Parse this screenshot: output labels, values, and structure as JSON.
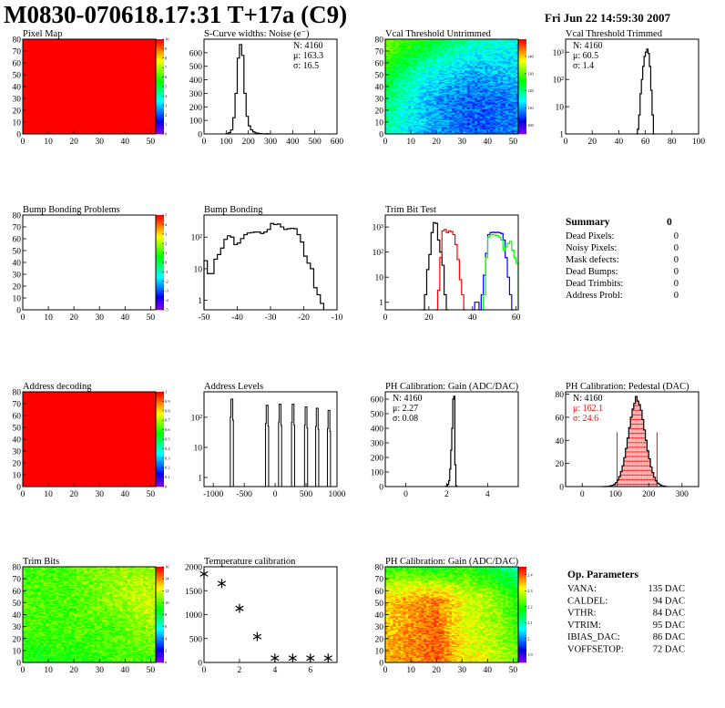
{
  "header": {
    "title": "M0830-070618.17:31 T+17a (C9)",
    "date": "Fri Jun 22 14:59:30 2007"
  },
  "chart_data": [
    {
      "id": "pixel-map",
      "type": "heatmap",
      "title": "Pixel Map",
      "xlim": [
        0,
        52
      ],
      "ylim": [
        0,
        80
      ],
      "xticks": [
        0,
        10,
        20,
        30,
        40,
        50
      ],
      "yticks": [
        0,
        10,
        20,
        30,
        40,
        50,
        60,
        70,
        80
      ],
      "zlim": [
        0,
        10
      ],
      "z_ticks": [
        0,
        1,
        2,
        3,
        4,
        5,
        6,
        7,
        8,
        9,
        10
      ],
      "uniform_value": 10
    },
    {
      "id": "scurve-noise",
      "type": "bar",
      "title": "S-Curve widths: Noise (e⁻)",
      "xlim": [
        0,
        600
      ],
      "ylim": [
        0,
        700
      ],
      "xticks": [
        0,
        100,
        200,
        300,
        400,
        500,
        600
      ],
      "yticks": [
        0,
        100,
        200,
        300,
        400,
        500,
        600
      ],
      "series": [
        {
          "x_start": 100,
          "bin_width": 10,
          "values": [
            3,
            10,
            30,
            120,
            300,
            560,
            660,
            580,
            300,
            130,
            60,
            30,
            15,
            8,
            5,
            3,
            1,
            0,
            2,
            0
          ],
          "color": "#000000"
        }
      ],
      "stats": {
        "position": "top-right",
        "lines": [
          "N: 4160",
          "μ: 163.3",
          "σ: 16.5"
        ]
      }
    },
    {
      "id": "vcal-untrimmed",
      "type": "heatmap",
      "title": "Vcal Threshold Untrimmed",
      "xlim": [
        0,
        52
      ],
      "ylim": [
        0,
        80
      ],
      "xticks": [
        0,
        10,
        20,
        30,
        40,
        50
      ],
      "yticks": [
        0,
        10,
        20,
        30,
        40,
        50,
        60,
        70,
        80
      ],
      "zlim": [
        95,
        150
      ],
      "z_ticks": [
        100,
        110,
        120,
        130,
        140
      ],
      "coarse_grid_top_to_bottom": [
        [
          132,
          125,
          118,
          115
        ],
        [
          125,
          115,
          110,
          112
        ],
        [
          120,
          110,
          106,
          108
        ],
        [
          118,
          110,
          106,
          108
        ]
      ]
    },
    {
      "id": "vcal-trimmed",
      "type": "bar",
      "title": "Vcal Threshold Trimmed",
      "xlim": [
        0,
        100
      ],
      "ylim": [
        1,
        3000
      ],
      "log_y": true,
      "xticks": [
        0,
        20,
        40,
        60,
        80,
        100
      ],
      "yticks": [
        1,
        10,
        100,
        1000
      ],
      "ytick_labels": [
        "1",
        "10",
        "10²",
        "10³"
      ],
      "series": [
        {
          "x_start": 53,
          "bin_width": 1,
          "values": [
            0,
            1.5,
            5,
            30,
            100,
            300,
            700,
            1000,
            1300,
            900,
            300,
            40,
            5,
            1
          ],
          "color": "#000000"
        }
      ],
      "stats": {
        "position": "top-left",
        "lines": [
          "N: 4160",
          "μ: 60.5",
          "σ:  1.4"
        ]
      }
    },
    {
      "id": "bump-bonding-problems",
      "type": "heatmap",
      "title": "Bump Bonding Problems",
      "xlim": [
        0,
        52
      ],
      "ylim": [
        0,
        80
      ],
      "xticks": [
        0,
        10,
        20,
        30,
        40,
        50
      ],
      "yticks": [
        0,
        10,
        20,
        30,
        40,
        50,
        60,
        70,
        80
      ],
      "zlim": [
        -5,
        5
      ],
      "z_ticks": [
        -5,
        -4,
        -3,
        -2,
        -1,
        0,
        1,
        2,
        3,
        4,
        5
      ],
      "empty": true
    },
    {
      "id": "bump-bonding",
      "type": "bar",
      "title": "Bump Bonding",
      "xlim": [
        -50,
        -10
      ],
      "ylim": [
        0.5,
        500
      ],
      "log_y": true,
      "xticks": [
        -50,
        -40,
        -30,
        -20,
        -10
      ],
      "yticks": [
        1,
        10,
        100
      ],
      "ytick_labels": [
        "1",
        "10",
        "10²"
      ],
      "series": [
        {
          "x_start": -50,
          "bin_width": 1,
          "values": [
            18,
            7,
            7,
            20,
            28,
            45,
            85,
            110,
            100,
            58,
            65,
            90,
            120,
            135,
            140,
            145,
            145,
            130,
            145,
            175,
            270,
            250,
            260,
            210,
            175,
            185,
            190,
            185,
            120,
            70,
            25,
            15,
            10,
            2.5,
            1.5,
            0.8
          ],
          "color": "#000000"
        }
      ]
    },
    {
      "id": "trim-bit-test",
      "type": "bar",
      "title": "Trim Bit Test",
      "xlim": [
        0,
        61
      ],
      "ylim": [
        0.5,
        3000
      ],
      "log_y": true,
      "xticks": [
        0,
        20,
        40,
        60
      ],
      "yticks": [
        1,
        10,
        100,
        1000
      ],
      "ytick_labels": [
        "1",
        "10",
        "10²",
        "10³"
      ],
      "series": [
        {
          "x_start": 17,
          "bin_width": 1,
          "values": [
            0.5,
            2,
            20,
            80,
            600,
            1500,
            1400,
            300,
            100,
            30,
            2,
            0.5
          ],
          "color": "#000000"
        },
        {
          "x_start": 23,
          "bin_width": 1,
          "values": [
            0.5,
            3,
            60,
            700,
            800,
            600,
            700,
            650,
            500,
            200,
            50,
            8,
            2,
            0.5
          ],
          "color": "#ff0000"
        },
        {
          "x_start": 40,
          "bin_width": 1,
          "values": [
            0.5,
            1,
            1,
            0.5,
            2,
            12,
            90,
            500,
            600,
            620,
            600,
            620,
            600,
            550,
            300,
            60,
            10,
            2,
            0.5
          ],
          "color": "#0000ff"
        },
        {
          "x_start": 44,
          "bin_width": 1,
          "values": [
            0.5,
            2,
            60,
            400,
            480,
            500,
            480,
            460,
            400,
            300,
            120,
            160,
            220,
            270,
            120,
            60,
            35
          ],
          "color": "#00ff00"
        }
      ]
    },
    {
      "id": "address-decoding",
      "type": "heatmap",
      "title": "Address decoding",
      "xlim": [
        0,
        52
      ],
      "ylim": [
        0,
        80
      ],
      "xticks": [
        0,
        10,
        20,
        30,
        40,
        50
      ],
      "yticks": [
        0,
        10,
        20,
        30,
        40,
        50,
        60,
        70,
        80
      ],
      "zlim": [
        0,
        1
      ],
      "z_ticks": [
        0,
        0.1,
        0.2,
        0.3,
        0.4,
        0.5,
        0.6,
        0.7,
        0.8,
        0.9,
        1
      ],
      "uniform_value": 1
    },
    {
      "id": "address-levels",
      "type": "bar",
      "title": "Address Levels",
      "xlim": [
        -1150,
        1000
      ],
      "ylim": [
        0.5,
        700
      ],
      "log_y": true,
      "xticks": [
        -1000,
        -500,
        0,
        500,
        1000
      ],
      "yticks": [
        1,
        10,
        100
      ],
      "ytick_labels": [
        "1",
        "10",
        "10²"
      ],
      "peaks": [
        {
          "x": -700,
          "height": 400
        },
        {
          "x": -130,
          "height": 250
        },
        {
          "x": 80,
          "height": 270
        },
        {
          "x": 290,
          "height": 270
        },
        {
          "x": 500,
          "height": 220
        },
        {
          "x": 680,
          "height": 200
        },
        {
          "x": 870,
          "height": 170
        }
      ]
    },
    {
      "id": "ph-gain",
      "type": "bar",
      "title": "PH Calibration: Gain (ADC/DAC)",
      "xlim": [
        -1,
        5.5
      ],
      "ylim": [
        0,
        650
      ],
      "xticks": [
        0,
        2,
        4
      ],
      "yticks": [
        0,
        100,
        200,
        300,
        400,
        500,
        600
      ],
      "series": [
        {
          "x_start": 1.95,
          "bin_width": 0.05,
          "values": [
            2,
            5,
            15,
            40,
            120,
            250,
            400,
            600,
            620,
            150,
            5
          ],
          "color": "#000000"
        }
      ],
      "stats": {
        "position": "top-left",
        "lines": [
          "N: 4160",
          "μ: 2.27",
          "σ: 0.08"
        ]
      }
    },
    {
      "id": "ph-pedestal",
      "type": "bar",
      "title": "PH Calibration: Pedestal (DAC)",
      "xlim": [
        -50,
        350
      ],
      "ylim": [
        0,
        82
      ],
      "xticks": [
        0,
        100,
        200,
        300
      ],
      "yticks": [
        0,
        20,
        40,
        60,
        80
      ],
      "series": [
        {
          "x_start": 60,
          "bin_width": 5,
          "values": [
            0,
            0,
            0.1,
            0.2,
            0.4,
            0.7,
            1.2,
            2.1,
            3.5,
            5.6,
            8.6,
            13,
            18,
            25,
            33,
            42,
            51,
            60,
            67,
            72,
            78,
            74,
            71,
            66,
            58,
            49,
            40,
            31,
            24,
            17,
            12,
            8,
            5,
            3,
            2,
            1,
            0.6,
            0.3,
            0.1
          ],
          "color": "#000000"
        }
      ],
      "fit_range": [
        105,
        225
      ],
      "fit_color": "#ff0000",
      "stats": {
        "position": "top-left",
        "lines": [
          "N: 4160",
          "μ: 162.1",
          "σ: 24.6"
        ],
        "highlight_color": "#ff0000"
      }
    },
    {
      "id": "trim-bits",
      "type": "heatmap",
      "title": "Trim Bits",
      "xlim": [
        0,
        52
      ],
      "ylim": [
        0,
        80
      ],
      "xticks": [
        0,
        10,
        20,
        30,
        40,
        50
      ],
      "yticks": [
        0,
        10,
        20,
        30,
        40,
        50,
        60,
        70,
        80
      ],
      "zlim": [
        0,
        16
      ],
      "z_ticks": [
        0,
        2,
        4,
        6,
        8,
        10,
        12,
        14,
        16
      ],
      "coarse_grid_top_to_bottom": [
        [
          10,
          10,
          11,
          11
        ],
        [
          10,
          10,
          11,
          12
        ],
        [
          10,
          10,
          10,
          11
        ],
        [
          9,
          9,
          10,
          10
        ]
      ]
    },
    {
      "id": "temperature-calibration",
      "type": "scatter",
      "title": "Temperature calibration",
      "xlim": [
        0,
        7.5
      ],
      "ylim": [
        0,
        2000
      ],
      "xticks": [
        0,
        2,
        4,
        6
      ],
      "yticks": [
        0,
        500,
        1000,
        1500,
        2000
      ],
      "x": [
        0,
        1,
        2,
        3,
        4,
        5,
        6,
        7
      ],
      "y": [
        1850,
        1650,
        1130,
        540,
        90,
        90,
        90,
        90
      ]
    },
    {
      "id": "ph-gain-map",
      "type": "heatmap",
      "title": "PH Calibration: Gain (ADC/DAC)",
      "xlim": [
        0,
        52
      ],
      "ylim": [
        0,
        80
      ],
      "xticks": [
        0,
        10,
        20,
        30,
        40,
        50
      ],
      "yticks": [
        0,
        10,
        20,
        30,
        40,
        50,
        60,
        70,
        80
      ],
      "zlim": [
        1.85,
        2.45
      ],
      "z_ticks": [
        1.9,
        2,
        2.1,
        2.2,
        2.3,
        2.4
      ],
      "coarse_grid_top_to_bottom": [
        [
          2.22,
          2.2,
          2.18,
          2.2,
          2.16,
          2.1
        ],
        [
          2.33,
          2.37,
          2.38,
          2.3,
          2.28,
          2.2
        ],
        [
          2.35,
          2.38,
          2.4,
          2.3,
          2.28,
          2.22
        ],
        [
          2.35,
          2.38,
          2.4,
          2.33,
          2.3,
          2.25
        ]
      ]
    }
  ],
  "summary": {
    "title": "Summary",
    "total": "0",
    "rows": [
      {
        "label": "Dead Pixels:",
        "value": "0"
      },
      {
        "label": "Noisy Pixels:",
        "value": "0"
      },
      {
        "label": "Mask defects:",
        "value": "0"
      },
      {
        "label": "Dead Bumps:",
        "value": "0"
      },
      {
        "label": "Dead Trimbits:",
        "value": "0"
      },
      {
        "label": "Address Probl:",
        "value": "0"
      }
    ]
  },
  "op_parameters": {
    "title": "Op. Parameters",
    "rows": [
      {
        "label": "VANA:",
        "value": "135 DAC"
      },
      {
        "label": "CALDEL:",
        "value": "94 DAC"
      },
      {
        "label": "VTHR:",
        "value": "84 DAC"
      },
      {
        "label": "VTRIM:",
        "value": "95 DAC"
      },
      {
        "label": "IBIAS_DAC:",
        "value": "86 DAC"
      },
      {
        "label": "VOFFSETOP:",
        "value": "72 DAC"
      }
    ]
  }
}
